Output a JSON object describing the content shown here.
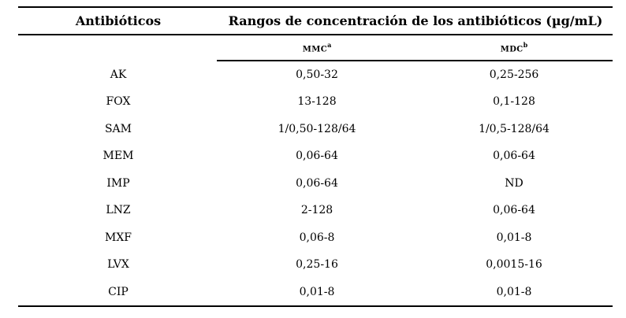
{
  "table": {
    "col1_header": "Antibióticos",
    "group_header": "Rangos de concentración de los antibióticos (µg/mL)",
    "subheaders": [
      {
        "label": "MMC",
        "sup": "a"
      },
      {
        "label": "MDC",
        "sup": "b"
      }
    ],
    "rows": [
      {
        "antibiotic": "AK",
        "mmc": "0,50-32",
        "mdc": "0,25-256"
      },
      {
        "antibiotic": "FOX",
        "mmc": "13-128",
        "mdc": "0,1-128"
      },
      {
        "antibiotic": "SAM",
        "mmc": "1/0,50-128/64",
        "mdc": "1/0,5-128/64"
      },
      {
        "antibiotic": "MEM",
        "mmc": "0,06-64",
        "mdc": "0,06-64"
      },
      {
        "antibiotic": "IMP",
        "mmc": "0,06-64",
        "mdc": "ND"
      },
      {
        "antibiotic": "LNZ",
        "mmc": "2-128",
        "mdc": "0,06-64"
      },
      {
        "antibiotic": "MXF",
        "mmc": "0,06-8",
        "mdc": "0,01-8"
      },
      {
        "antibiotic": "LVX",
        "mmc": "0,25-16",
        "mdc": "0,0015-16"
      },
      {
        "antibiotic": "CIP",
        "mmc": "0,01-8",
        "mdc": "0,01-8"
      }
    ],
    "colors": {
      "text": "#000000",
      "background": "#ffffff",
      "rule": "#000000"
    }
  }
}
